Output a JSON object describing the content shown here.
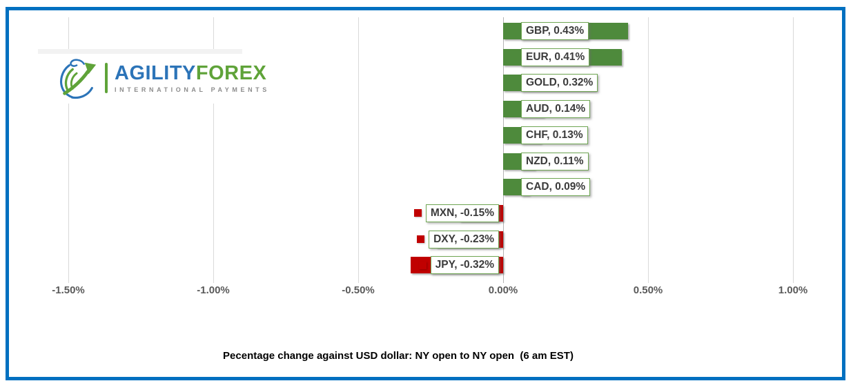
{
  "frame": {
    "border_color": "#0070c0",
    "background": "#ffffff"
  },
  "logo": {
    "globe_icon": "globe-swoosh-arrow-icon",
    "brand_primary": "AGILITY",
    "brand_secondary": "FOREX",
    "tagline": "INTERNATIONAL PAYMENTS",
    "primary_color": "#2c74b8",
    "secondary_color": "#5fa339"
  },
  "chart_data": {
    "type": "bar",
    "orientation": "horizontal",
    "title": "Pecentage change against USD dollar: NY open to NY open  (6 am EST)",
    "categories": [
      "GBP",
      "EUR",
      "GOLD",
      "AUD",
      "CHF",
      "NZD",
      "CAD",
      "MXN",
      "DXY",
      "JPY"
    ],
    "values": [
      0.43,
      0.41,
      0.32,
      0.14,
      0.13,
      0.11,
      0.09,
      -0.15,
      -0.23,
      -0.32
    ],
    "data_labels": [
      "GBP, 0.43%",
      "EUR, 0.41%",
      "GOLD, 0.32%",
      "AUD, 0.14%",
      "CHF, 0.13%",
      "NZD, 0.11%",
      "CAD, 0.09%",
      "MXN, -0.15%",
      "DXY, -0.23%",
      "JPY, -0.32%"
    ],
    "x_ticks": [
      {
        "label": "-1.50%",
        "value": -1.5
      },
      {
        "label": "-1.00%",
        "value": -1.0
      },
      {
        "label": "-0.50%",
        "value": -0.5
      },
      {
        "label": "0.00%",
        "value": 0.0
      },
      {
        "label": "0.50%",
        "value": 0.5
      },
      {
        "label": "1.00%",
        "value": 1.0
      }
    ],
    "xlim": [
      -1.7,
      1.17
    ],
    "grid": true,
    "legend": "none",
    "positive_color": "#4e8a3c",
    "negative_color": "#c00000",
    "label_border_color": "#6fa653",
    "axis_text_color": "#595959",
    "gridline_color": "#d9d9d9"
  }
}
